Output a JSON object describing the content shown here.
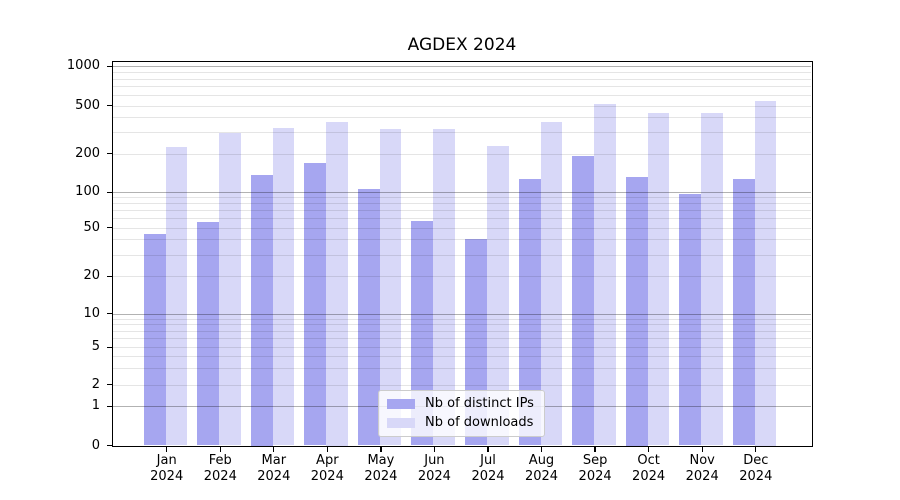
{
  "title": "AGDEX 2024",
  "chart_data": {
    "type": "bar",
    "title": "AGDEX 2024",
    "x": [
      "Jan 2024",
      "Feb 2024",
      "Mar 2024",
      "Apr 2024",
      "May 2024",
      "Jun 2024",
      "Jul 2024",
      "Aug 2024",
      "Sep 2024",
      "Oct 2024",
      "Nov 2024",
      "Dec 2024"
    ],
    "month_labels": [
      "Jan",
      "Feb",
      "Mar",
      "Apr",
      "May",
      "Jun",
      "Jul",
      "Aug",
      "Sep",
      "Oct",
      "Nov",
      "Dec"
    ],
    "year_label": "2024",
    "series": [
      {
        "name": "Nb of distinct IPs",
        "color": "#a6a6f0",
        "values": [
          44,
          56,
          137,
          168,
          105,
          57,
          40,
          126,
          190,
          131,
          97,
          126
        ]
      },
      {
        "name": "Nb of downloads",
        "color": "#d8d8f8",
        "values": [
          228,
          297,
          325,
          365,
          322,
          318,
          230,
          366,
          514,
          435,
          436,
          541
        ]
      }
    ],
    "y_axis": {
      "scale": "symlog",
      "ticks": [
        0,
        1,
        2,
        5,
        10,
        20,
        50,
        100,
        200,
        500,
        1000
      ],
      "range": [
        0,
        1080
      ],
      "grid": "both",
      "major_grid_values": [
        1,
        10,
        100,
        1000
      ]
    },
    "legend": {
      "position": "lower-center",
      "entries": [
        "Nb of distinct IPs",
        "Nb of downloads"
      ]
    },
    "colors": {
      "background": "#ffffff",
      "axis": "#000000",
      "major_grid": "#b3b3b3",
      "minor_grid": "#e6e6e6"
    }
  }
}
